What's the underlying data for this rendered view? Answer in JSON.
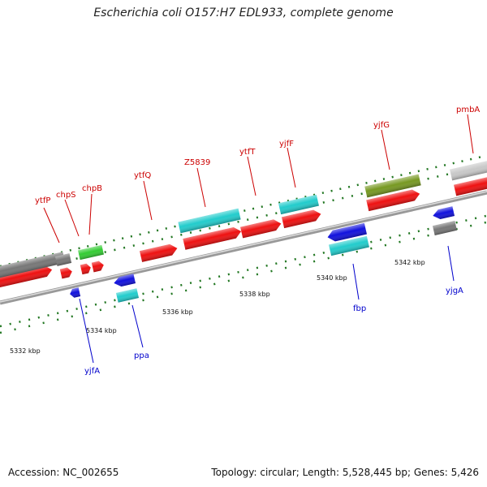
{
  "title": "Escherichia coli O157:H7 EDL933, complete genome",
  "footer": {
    "accession": "Accession: NC_002655",
    "info": "Topology: circular; Length: 5,528,445 bp; Genes: 5,426"
  },
  "colors": {
    "red": "#ee1111",
    "green": "#33cc33",
    "gray": "#777777",
    "blue": "#1111dd",
    "cyan": "#22cccc",
    "olive": "#779922",
    "light_gray": "#c8c8c8",
    "label_top": "#cc0000",
    "label_bottom": "#0000cc",
    "tick": "#227722",
    "backbone": "#888888"
  },
  "scale": {
    "unit": "kbp",
    "ticks": [
      {
        "kbp": 5332,
        "label": "5332 kbp"
      },
      {
        "kbp": 5334,
        "label": "5334 kbp"
      },
      {
        "kbp": 5336,
        "label": "5336 kbp"
      },
      {
        "kbp": 5338,
        "label": "5338 kbp"
      },
      {
        "kbp": 5340,
        "label": "5340 kbp"
      },
      {
        "kbp": 5342,
        "label": "5342 kbp"
      }
    ]
  },
  "gene_labels": {
    "top": [
      "ytfP",
      "chpS",
      "chpB",
      "ytfQ",
      "Z5839",
      "ytfT",
      "yjfF",
      "yjfG",
      "pmbA"
    ],
    "bottom": [
      "yjfA",
      "ppa",
      "fbp",
      "yjgA"
    ]
  }
}
